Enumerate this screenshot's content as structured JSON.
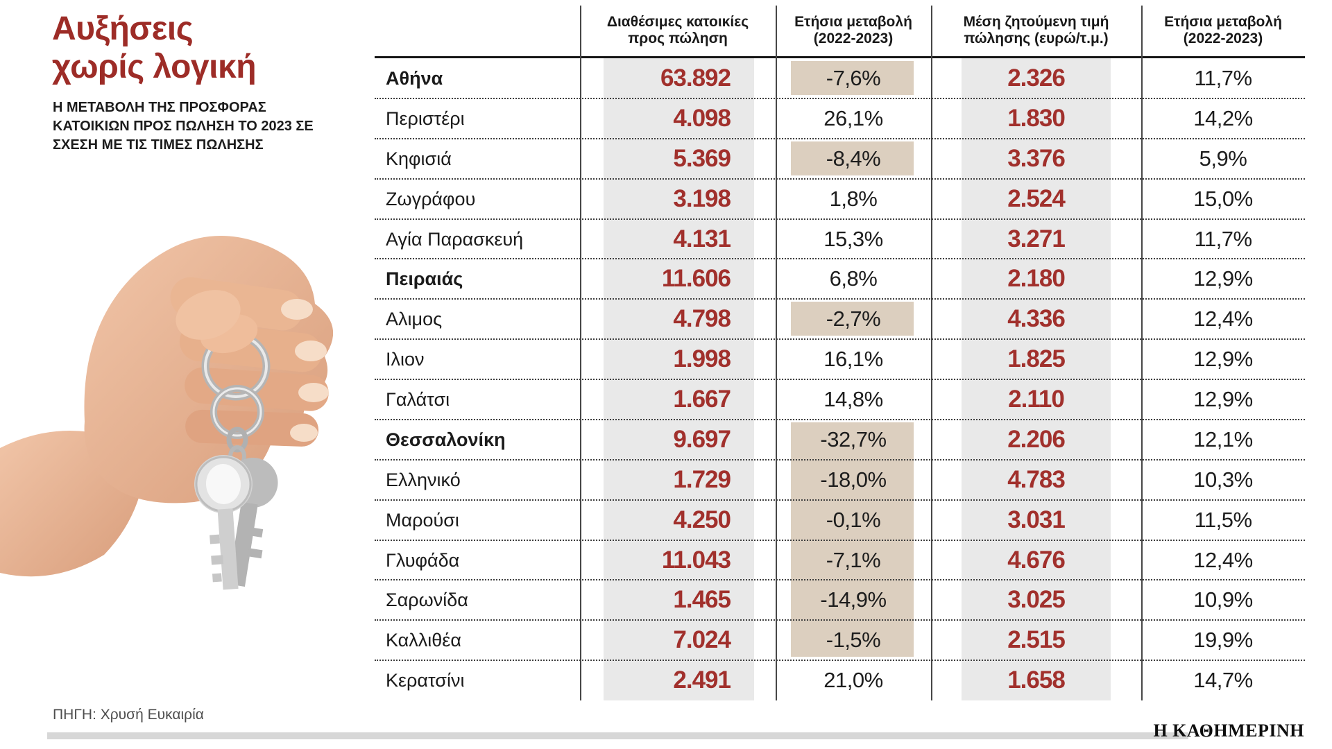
{
  "header": {
    "title_lines": [
      "Αυξήσεις",
      "χωρίς λογική"
    ],
    "subtitle": "Η ΜΕΤΑΒΟΛΗ ΤΗΣ ΠΡΟΣΦΟΡΑΣ ΚΑΤΟΙΚΙΩΝ ΠΡΟΣ ΠΩΛΗΣΗ ΤΟ 2023 ΣΕ ΣΧΕΣΗ ΜΕ ΤΙΣ ΤΙΜΕΣ ΠΩΛΗΣΗΣ"
  },
  "source": {
    "label": "ΠΗΓΗ: Χρυσή Ευκαιρία"
  },
  "brand": {
    "name": "Η ΚΑΘΗΜΕΡΙΝΗ"
  },
  "colors": {
    "title_red": "#9d2c27",
    "value_red": "#a1302c",
    "highlight_beige": "#dccfbf",
    "column_band_gray": "#e9e9e9",
    "footer_bar_gray": "#d7d7d7"
  },
  "table": {
    "headers": [
      "Διαθέσιμες κατοικίες προς πώληση",
      "Ετήσια μεταβολή (2022-2023)",
      "Μέση ζητούμενη τιμή πώλησης (ευρώ/τ.μ.)",
      "Ετήσια μεταβολή (2022-2023)"
    ],
    "rows": [
      {
        "region": "Αθήνα",
        "bold": true,
        "available": "63.892",
        "supply_change": "-7,6%",
        "price": "2.326",
        "price_change": "11,7%"
      },
      {
        "region": "Περιστέρι",
        "bold": false,
        "available": "4.098",
        "supply_change": "26,1%",
        "price": "1.830",
        "price_change": "14,2%"
      },
      {
        "region": "Κηφισιά",
        "bold": false,
        "available": "5.369",
        "supply_change": "-8,4%",
        "price": "3.376",
        "price_change": "5,9%"
      },
      {
        "region": "Ζωγράφου",
        "bold": false,
        "available": "3.198",
        "supply_change": "1,8%",
        "price": "2.524",
        "price_change": "15,0%"
      },
      {
        "region": "Αγία Παρασκευή",
        "bold": false,
        "available": "4.131",
        "supply_change": "15,3%",
        "price": "3.271",
        "price_change": "11,7%"
      },
      {
        "region": "Πειραιάς",
        "bold": true,
        "available": "11.606",
        "supply_change": "6,8%",
        "price": "2.180",
        "price_change": "12,9%"
      },
      {
        "region": "Αλιμος",
        "bold": false,
        "available": "4.798",
        "supply_change": "-2,7%",
        "price": "4.336",
        "price_change": "12,4%"
      },
      {
        "region": "Ιλιον",
        "bold": false,
        "available": "1.998",
        "supply_change": "16,1%",
        "price": "1.825",
        "price_change": "12,9%"
      },
      {
        "region": "Γαλάτσι",
        "bold": false,
        "available": "1.667",
        "supply_change": "14,8%",
        "price": "2.110",
        "price_change": "12,9%"
      },
      {
        "region": "Θεσσαλονίκη",
        "bold": true,
        "available": "9.697",
        "supply_change": "-32,7%",
        "price": "2.206",
        "price_change": "12,1%"
      },
      {
        "region": "Ελληνικό",
        "bold": false,
        "available": "1.729",
        "supply_change": "-18,0%",
        "price": "4.783",
        "price_change": "10,3%"
      },
      {
        "region": "Μαρούσι",
        "bold": false,
        "available": "4.250",
        "supply_change": "-0,1%",
        "price": "3.031",
        "price_change": "11,5%"
      },
      {
        "region": "Γλυφάδα",
        "bold": false,
        "available": "11.043",
        "supply_change": "-7,1%",
        "price": "4.676",
        "price_change": "12,4%"
      },
      {
        "region": "Σαρωνίδα",
        "bold": false,
        "available": "1.465",
        "supply_change": "-14,9%",
        "price": "3.025",
        "price_change": "10,9%"
      },
      {
        "region": "Καλλιθέα",
        "bold": false,
        "available": "7.024",
        "supply_change": "-1,5%",
        "price": "2.515",
        "price_change": "19,9%"
      },
      {
        "region": "Κερατσίνι",
        "bold": false,
        "available": "2.491",
        "supply_change": "21,0%",
        "price": "1.658",
        "price_change": "14,7%"
      }
    ]
  },
  "chart_data": {
    "type": "table",
    "title": "Αυξήσεις χωρίς λογική",
    "subtitle": "Η ΜΕΤΑΒΟΛΗ ΤΗΣ ΠΡΟΣΦΟΡΑΣ ΚΑΤΟΙΚΙΩΝ ΠΡΟΣ ΠΩΛΗΣΗ ΤΟ 2023 ΣΕ ΣΧΕΣΗ ΜΕ ΤΙΣ ΤΙΜΕΣ ΠΩΛΗΣΗΣ",
    "columns": [
      "",
      "Διαθέσιμες κατοικίες προς πώληση",
      "Ετήσια μεταβολή (2022-2023)",
      "Μέση ζητούμενη τιμή πώλησης (ευρώ/τ.μ.)",
      "Ετήσια μεταβολή (2022-2023)"
    ],
    "rows": [
      [
        "Αθήνα",
        63892,
        -7.6,
        2326,
        11.7
      ],
      [
        "Περιστέρι",
        4098,
        26.1,
        1830,
        14.2
      ],
      [
        "Κηφισιά",
        5369,
        -8.4,
        3376,
        5.9
      ],
      [
        "Ζωγράφου",
        3198,
        1.8,
        2524,
        15.0
      ],
      [
        "Αγία Παρασκευή",
        4131,
        15.3,
        3271,
        11.7
      ],
      [
        "Πειραιάς",
        11606,
        6.8,
        2180,
        12.9
      ],
      [
        "Αλιμος",
        4798,
        -2.7,
        4336,
        12.4
      ],
      [
        "Ιλιον",
        1998,
        16.1,
        1825,
        12.9
      ],
      [
        "Γαλάτσι",
        1667,
        14.8,
        2110,
        12.9
      ],
      [
        "Θεσσαλονίκη",
        9697,
        -32.7,
        2206,
        12.1
      ],
      [
        "Ελληνικό",
        1729,
        -18.0,
        4783,
        10.3
      ],
      [
        "Μαρούσι",
        4250,
        -0.1,
        3031,
        11.5
      ],
      [
        "Γλυφάδα",
        11043,
        -7.1,
        4676,
        12.4
      ],
      [
        "Σαρωνίδα",
        1465,
        -14.9,
        3025,
        10.9
      ],
      [
        "Καλλιθέα",
        7024,
        -1.5,
        2515,
        19.9
      ],
      [
        "Κερατσίνι",
        2491,
        21.0,
        1658,
        14.7
      ]
    ],
    "source": "ΠΗΓΗ: Χρυσή Ευκαιρία",
    "notes": "negative supply-change cells highlighted beige; value columns on gray bands"
  }
}
